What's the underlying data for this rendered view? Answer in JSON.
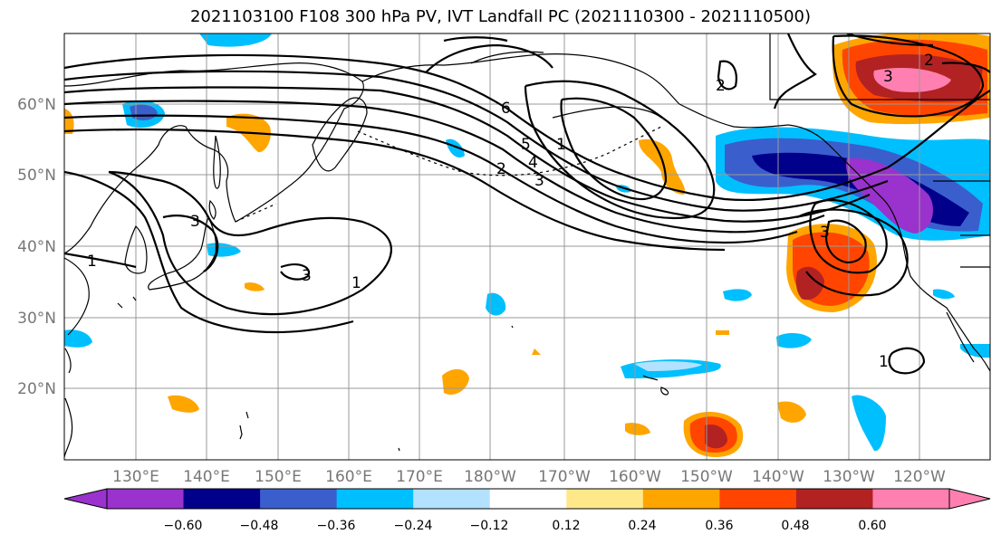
{
  "title": "2021103100 F108 300 hPa PV, IVT Landfall PC (2021110300 - 2021110500)",
  "lat_labels": [
    "60°N",
    "50°N",
    "40°N",
    "30°N",
    "20°N"
  ],
  "lon_labels": [
    "130°E",
    "140°E",
    "150°E",
    "160°E",
    "170°E",
    "180°W",
    "170°W",
    "160°W",
    "150°W",
    "140°W",
    "130°W",
    "120°W"
  ],
  "contour_labels": [
    "1",
    "3",
    "3",
    "1",
    "6",
    "5",
    "4",
    "3",
    "2",
    "1",
    "2",
    "3",
    "2",
    "3",
    "1"
  ],
  "colorbar": {
    "tick_labels": [
      "−0.60",
      "−0.48",
      "−0.36",
      "−0.24",
      "−0.12",
      "0.12",
      "0.24",
      "0.36",
      "0.48",
      "0.60"
    ],
    "colors": [
      "#9a32cd",
      "#00008b",
      "#3a5fcd",
      "#00bfff",
      "#b2e2ff",
      "#ffffff",
      "#ffe88a",
      "#ffa500",
      "#ff4500",
      "#b22222",
      "#ff80b0"
    ]
  },
  "colors": {
    "grid": "#999999",
    "coast": "#000000",
    "contour": "#000000"
  }
}
